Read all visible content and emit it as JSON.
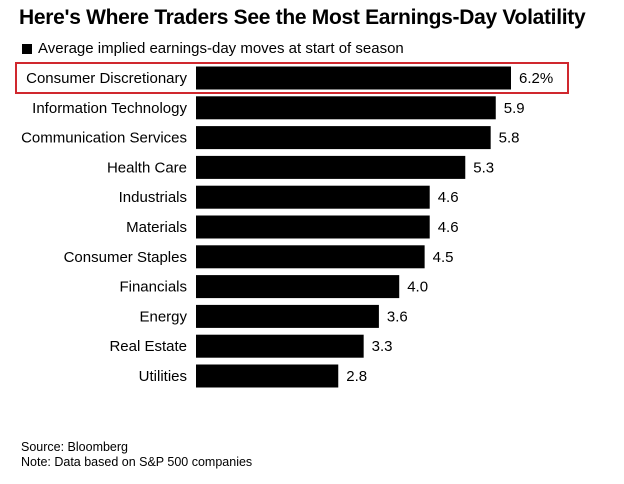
{
  "chart_data": {
    "type": "bar",
    "orientation": "horizontal",
    "title": "Here's Where Traders See the Most Earnings-Day Volatility",
    "legend": "Average implied earnings-day moves at start of season",
    "categories": [
      "Consumer Discretionary",
      "Information Technology",
      "Communication Services",
      "Health Care",
      "Industrials",
      "Materials",
      "Consumer Staples",
      "Financials",
      "Energy",
      "Real Estate",
      "Utilities"
    ],
    "values": [
      6.2,
      5.9,
      5.8,
      5.3,
      4.6,
      4.6,
      4.5,
      4.0,
      3.6,
      3.3,
      2.8
    ],
    "value_labels": [
      "6.2%",
      "5.9",
      "5.8",
      "5.3",
      "4.6",
      "4.6",
      "4.5",
      "4.0",
      "3.6",
      "3.3",
      "2.8"
    ],
    "highlighted_category": "Consumer Discretionary",
    "xlim": [
      0,
      6.2
    ],
    "xlabel": "",
    "ylabel": "",
    "grid": false
  },
  "colors": {
    "bar": "#000000",
    "highlight": "#d0282e",
    "text": "#000000"
  },
  "footer": {
    "source": "Source: Bloomberg",
    "note": "Note: Data based on S&P 500 companies"
  }
}
